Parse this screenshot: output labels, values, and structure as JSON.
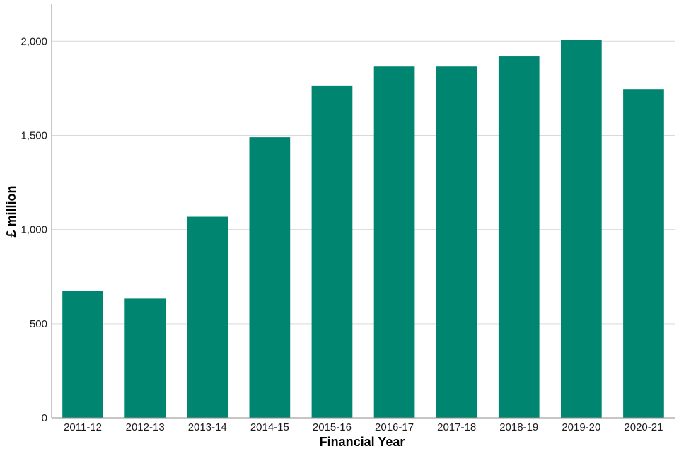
{
  "chart_data": {
    "type": "bar",
    "title": "",
    "xlabel": "Financial Year",
    "ylabel": "£ million",
    "categories": [
      "2011-12",
      "2012-13",
      "2013-14",
      "2014-15",
      "2015-16",
      "2016-17",
      "2017-18",
      "2018-19",
      "2019-20",
      "2020-21"
    ],
    "values": [
      675,
      633,
      1068,
      1490,
      1765,
      1865,
      1865,
      1922,
      2005,
      1745
    ],
    "ylim": [
      0,
      2200
    ],
    "yticks": [
      0,
      500,
      1000,
      1500,
      2000
    ],
    "ytick_labels": [
      "0",
      "500",
      "1,000",
      "1,500",
      "2,000"
    ],
    "grid": true,
    "legend": "none",
    "bar_color": "#008670"
  }
}
